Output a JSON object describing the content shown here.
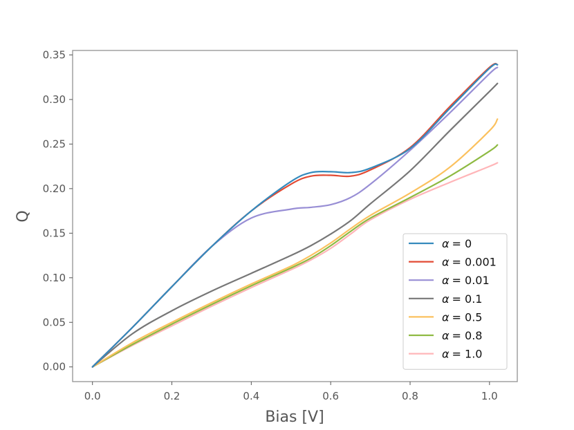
{
  "chart_data": {
    "type": "line",
    "title": "",
    "xlabel": "Bias [V]",
    "ylabel": "Q",
    "xlim": [
      -0.05,
      1.07
    ],
    "ylim": [
      -0.0165,
      0.355
    ],
    "xticks": [
      0.0,
      0.2,
      0.4,
      0.6,
      0.8,
      1.0
    ],
    "xtick_labels": [
      "0.0",
      "0.2",
      "0.4",
      "0.6",
      "0.8",
      "1.0"
    ],
    "yticks": [
      0.0,
      0.05,
      0.1,
      0.15,
      0.2,
      0.25,
      0.3,
      0.35
    ],
    "ytick_labels": [
      "0.00",
      "0.05",
      "0.10",
      "0.15",
      "0.20",
      "0.25",
      "0.30",
      "0.35"
    ],
    "grid": false,
    "legend_position": "lower-right",
    "x": [
      0.0,
      0.1,
      0.2,
      0.3,
      0.4,
      0.5,
      0.55,
      0.6,
      0.65,
      0.7,
      0.8,
      0.9,
      1.0,
      1.02
    ],
    "series": [
      {
        "name": "α = 0",
        "legend_prefix": "α",
        "legend_value": "= 0",
        "color": "#348abd",
        "values": [
          0.0,
          0.044,
          0.09,
          0.135,
          0.175,
          0.208,
          0.218,
          0.219,
          0.218,
          0.223,
          0.245,
          0.29,
          0.335,
          0.339
        ]
      },
      {
        "name": "α = 0.001",
        "legend_prefix": "α",
        "legend_value": "= 0.001",
        "color": "#e24a33",
        "values": [
          0.0,
          0.044,
          0.09,
          0.135,
          0.175,
          0.205,
          0.214,
          0.215,
          0.214,
          0.221,
          0.246,
          0.292,
          0.336,
          0.339
        ]
      },
      {
        "name": "α = 0.01",
        "legend_prefix": "α",
        "legend_value": "= 0.01",
        "color": "#988ed5",
        "values": [
          0.0,
          0.044,
          0.09,
          0.135,
          0.167,
          0.177,
          0.179,
          0.182,
          0.19,
          0.205,
          0.243,
          0.285,
          0.329,
          0.336
        ]
      },
      {
        "name": "α = 0.1",
        "legend_prefix": "α",
        "legend_value": "= 0.1",
        "color": "#777777",
        "values": [
          0.0,
          0.037,
          0.063,
          0.085,
          0.105,
          0.125,
          0.136,
          0.149,
          0.164,
          0.183,
          0.22,
          0.265,
          0.309,
          0.318
        ]
      },
      {
        "name": "α = 0.5",
        "legend_prefix": "α",
        "legend_value": "= 0.5",
        "color": "#fbc15e",
        "values": [
          0.0,
          0.027,
          0.05,
          0.072,
          0.093,
          0.113,
          0.125,
          0.139,
          0.155,
          0.17,
          0.195,
          0.224,
          0.265,
          0.278
        ]
      },
      {
        "name": "α = 0.8",
        "legend_prefix": "α",
        "legend_value": "= 0.8",
        "color": "#8eba42",
        "values": [
          0.0,
          0.025,
          0.048,
          0.07,
          0.091,
          0.111,
          0.122,
          0.136,
          0.152,
          0.167,
          0.19,
          0.214,
          0.242,
          0.249
        ]
      },
      {
        "name": "α = 1.0",
        "legend_prefix": "α",
        "legend_value": "= 1.0",
        "color": "#ffb5b8",
        "values": [
          0.0,
          0.024,
          0.046,
          0.068,
          0.089,
          0.109,
          0.12,
          0.133,
          0.149,
          0.165,
          0.188,
          0.207,
          0.225,
          0.229
        ]
      }
    ]
  }
}
